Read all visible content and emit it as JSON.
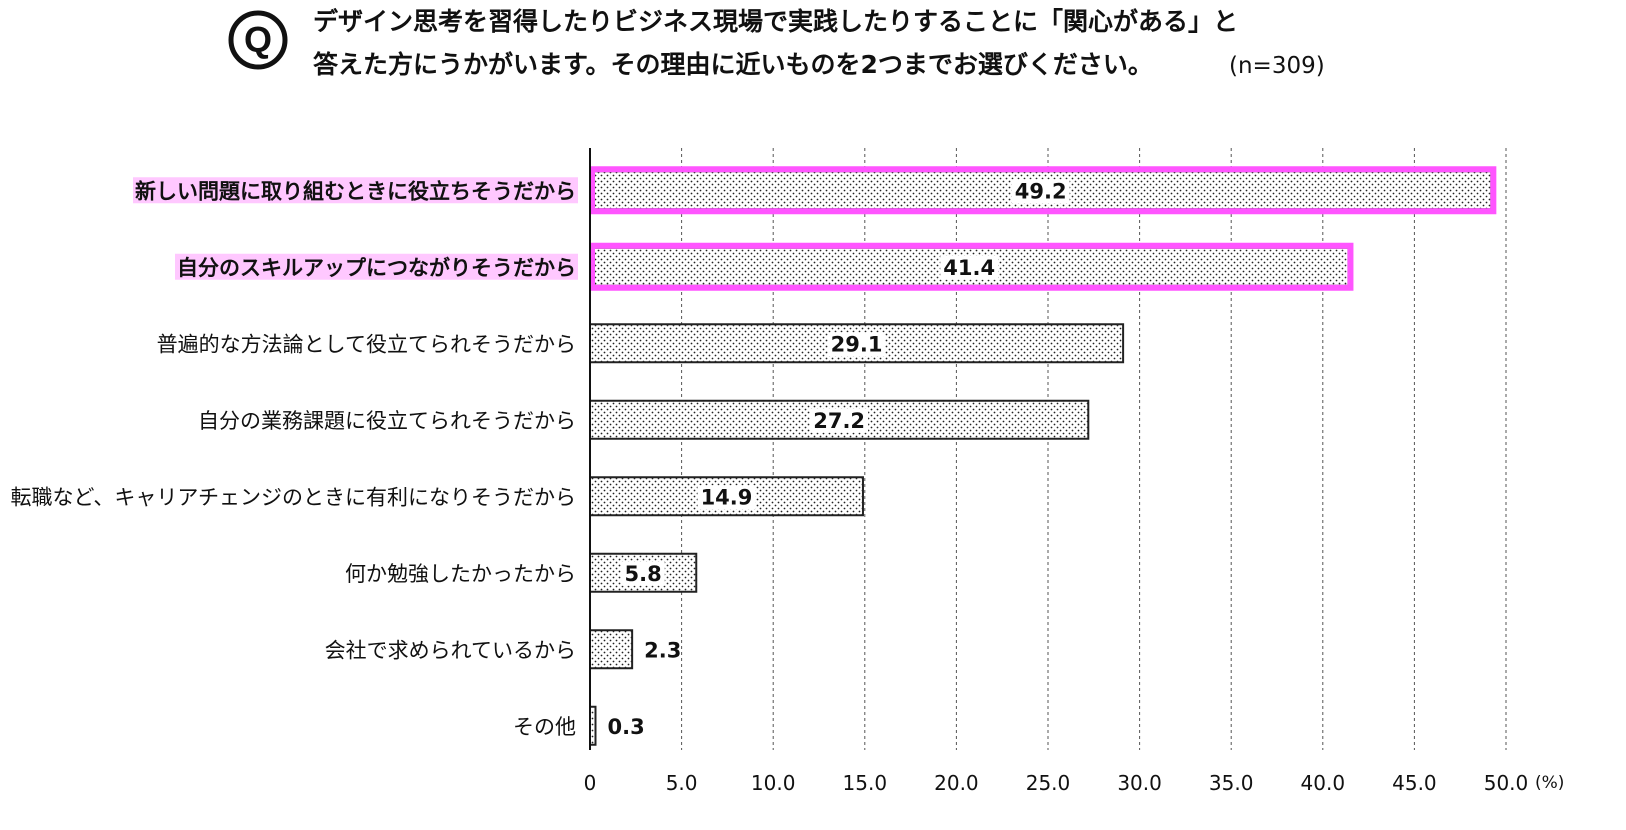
{
  "question": {
    "icon": "Q",
    "line1": "デザイン思考を習得したりビジネス現場で実践したりすることに「関心がある」と",
    "line2": "答えた方にうかがいます。その理由に近いものを2つまでお選びください。",
    "n": "(n=309)"
  },
  "chart_data": {
    "type": "bar",
    "orientation": "horizontal",
    "categories": [
      "新しい問題に取り組むときに役立ちそうだから",
      "自分のスキルアップにつながりそうだから",
      "普遍的な方法論として役立てられそうだから",
      "自分の業務課題に役立てられそうだから",
      "転職など、キャリアチェンジのときに有利になりそうだから",
      "何か勉強したかったから",
      "会社で求められているから",
      "その他"
    ],
    "values": [
      49.2,
      41.4,
      29.1,
      27.2,
      14.9,
      5.8,
      2.3,
      0.3
    ],
    "value_labels": [
      "49.2",
      "41.4",
      "29.1",
      "27.2",
      "14.9",
      "5.8",
      "2.3",
      "0.3"
    ],
    "highlighted": [
      true,
      true,
      false,
      false,
      false,
      false,
      false,
      false
    ],
    "x_ticks": [
      "0",
      "5.0",
      "10.0",
      "15.0",
      "20.0",
      "25.0",
      "30.0",
      "35.0",
      "40.0",
      "45.0",
      "50.0"
    ],
    "x_unit": "(%)",
    "xlim": [
      0,
      50
    ],
    "grid": "vertical-dashed",
    "bar_pattern": "dotted",
    "colors": {
      "highlight": "#ff55ff",
      "highlight_label_bg": "#ffc8ff",
      "bar_stroke": "#222222",
      "grid": "#555555"
    }
  }
}
